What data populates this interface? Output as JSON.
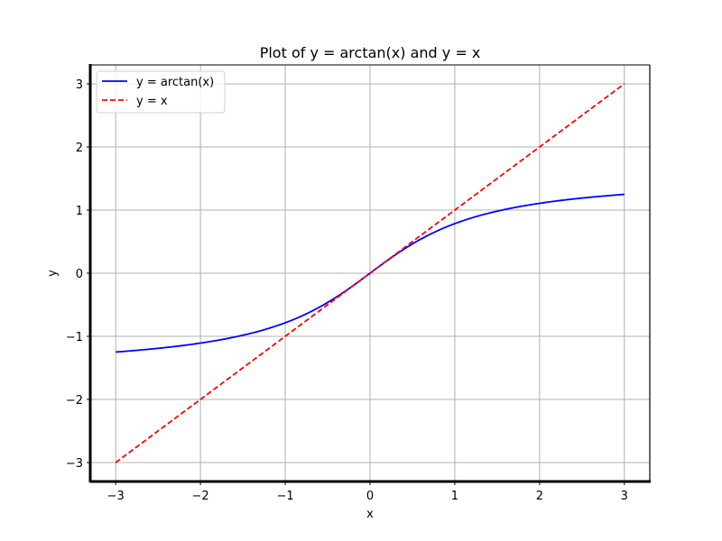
{
  "chart_data": {
    "type": "line",
    "title": "Plot of y = arctan(x) and y = x",
    "xlabel": "x",
    "ylabel": "y",
    "xlim": [
      -3.3,
      3.3
    ],
    "ylim": [
      -3.3,
      3.3
    ],
    "xticks": [
      -3,
      -2,
      -1,
      0,
      1,
      2,
      3
    ],
    "yticks": [
      -3,
      -2,
      -1,
      0,
      1,
      2,
      3
    ],
    "grid": true,
    "legend_placement": "top-left",
    "x_range": [
      -3,
      3
    ],
    "series": [
      {
        "name": "y = arctan(x)",
        "function": "arctan(x)",
        "color": "#0000ff",
        "style": "solid"
      },
      {
        "name": "y = x",
        "function": "x",
        "color": "#ff0000",
        "style": "dashed"
      }
    ]
  }
}
